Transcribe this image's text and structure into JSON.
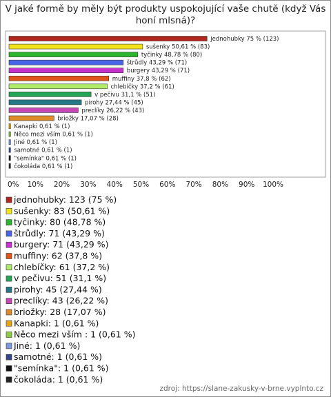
{
  "chart_data": {
    "type": "bar",
    "orientation": "horizontal",
    "title": "V jaké formě by měly být produkty uspokojující vaše chutě (když Vás honí mlsná)?",
    "values": [
      75,
      50.61,
      48.78,
      43.29,
      43.29,
      37.8,
      37.2,
      31.1,
      27.44,
      26.22,
      17.07,
      0.61,
      0.61,
      0.61,
      0.61,
      0.61,
      0.61
    ],
    "value_labels": [
      "jednohubky 75 % (123)",
      "sušenky 50,61 % (83)",
      "tyčinky 48,78 % (80)",
      "štrůdly 43,29 % (71)",
      "burgery 43,29 % (71)",
      "muffiny 37,8 % (62)",
      "chlebíčky 37,2 % (61)",
      "v pečivu 31,1 % (51)",
      "pirohy 27,44 % (45)",
      "preclíky 26,22 % (43)",
      "briožky 17,07 % (28)",
      "Kanapki 0,61 % (1)",
      "Něco mezi vším  0,61 % (1)",
      "Jiné 0,61 % (1)",
      "samotné 0,61 % (1)",
      "\"semínka\" 0,61 % (1)",
      "čokoláda 0,61 % (1)"
    ],
    "legend": [
      "jednohubky: 123 (75 %)",
      "sušenky: 83 (50,61 %)",
      "tyčinky: 80 (48,78 %)",
      "štrůdly: 71 (43,29 %)",
      "burgery: 71 (43,29 %)",
      "muffiny: 62 (37,8 %)",
      "chlebíčky: 61 (37,2 %)",
      "v pečivu: 51 (31,1 %)",
      "pirohy: 45 (27,44 %)",
      "preclíky: 43 (26,22 %)",
      "briožky: 28 (17,07 %)",
      "Kanapki: 1 (0,61 %)",
      "Něco mezi vším : 1 (0,61 %)",
      "Jiné: 1 (0,61 %)",
      "samotné: 1 (0,61 %)",
      "\"semínka\": 1 (0,61 %)",
      "čokoláda: 1 (0,61 %)"
    ],
    "colors": [
      "#b3261e",
      "#f2e21a",
      "#2db52d",
      "#4a66e8",
      "#c833d0",
      "#e0561a",
      "#b0ec6a",
      "#24a657",
      "#237a86",
      "#c648b4",
      "#dc8a2a",
      "#e8a410",
      "#8ccc44",
      "#7a9ade",
      "#34468c",
      "#111111",
      "#222222"
    ],
    "xlim": [
      0,
      100
    ],
    "xticks": [
      {
        "value": 0,
        "label": "0%"
      },
      {
        "value": 10,
        "label": "10%"
      },
      {
        "value": 20,
        "label": "20%"
      },
      {
        "value": 30,
        "label": "30%"
      },
      {
        "value": 40,
        "label": "40%"
      },
      {
        "value": 50,
        "label": "50%"
      },
      {
        "value": 60,
        "label": "60%"
      },
      {
        "value": 70,
        "label": "70%"
      },
      {
        "value": 80,
        "label": "80%"
      },
      {
        "value": 90,
        "label": "90%"
      },
      {
        "value": 100,
        "label": "100%"
      }
    ],
    "source": "zdroj: https://slane-zakusky-v-brne.vyplnto.cz"
  }
}
